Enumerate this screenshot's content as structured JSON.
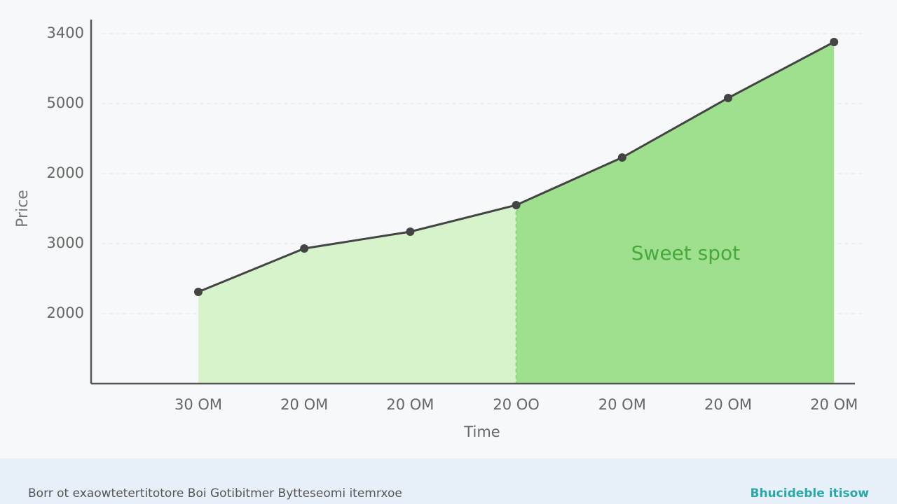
{
  "chart_data": {
    "type": "area",
    "categories": [
      "30 OM",
      "20 OM",
      "20 OM",
      "20 OO",
      "20 OM",
      "20 OM",
      "20 OM"
    ],
    "series": [
      {
        "name": "Price",
        "color": "#444444",
        "values": [
          1.31,
          1.93,
          2.17,
          2.55,
          3.23,
          4.08,
          4.88
        ]
      }
    ],
    "xlabel": "Time",
    "ylabel": "Price",
    "ylim": [
      0,
      5.2
    ],
    "yticks": [
      {
        "value": 1,
        "label": "2000"
      },
      {
        "value": 2,
        "label": "3000"
      },
      {
        "value": 3,
        "label": "2000"
      },
      {
        "value": 4,
        "label": "5000"
      },
      {
        "value": 5,
        "label": "3400"
      }
    ],
    "grid": true,
    "annotation": "Sweet spot",
    "highlight_start": 3,
    "fill_colors": [
      "#d6f3cc",
      "#9fe08f"
    ]
  },
  "footer": {
    "left": "Borr ot exaowtetertitotore Boi Gotibitmer Bytteseomi itemrxoe",
    "right": "Bhucideble itisow"
  }
}
